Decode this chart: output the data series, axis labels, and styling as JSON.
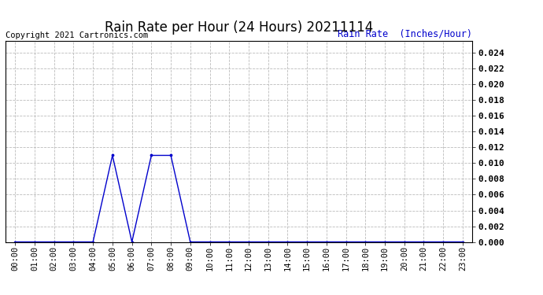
{
  "title": "Rain Rate per Hour (24 Hours) 20211114",
  "copyright_text": "Copyright 2021 Cartronics.com",
  "ylabel": "Rain Rate  (Inches/Hour)",
  "line_color": "#0000CC",
  "background_color": "#ffffff",
  "grid_color": "#bbbbbb",
  "hours": [
    0,
    1,
    2,
    3,
    4,
    5,
    6,
    7,
    8,
    9,
    10,
    11,
    12,
    13,
    14,
    15,
    16,
    17,
    18,
    19,
    20,
    21,
    22,
    23
  ],
  "values": [
    0,
    0,
    0,
    0,
    0,
    0.011,
    0,
    0.011,
    0.011,
    0,
    0,
    0,
    0,
    0,
    0,
    0,
    0,
    0,
    0,
    0,
    0,
    0,
    0,
    0
  ],
  "ylim": [
    0,
    0.0255
  ],
  "yticks": [
    0.0,
    0.002,
    0.004,
    0.006,
    0.008,
    0.01,
    0.012,
    0.014,
    0.016,
    0.018,
    0.02,
    0.022,
    0.024
  ],
  "marker_size": 3.5,
  "title_fontsize": 12,
  "label_fontsize": 8.5,
  "tick_fontsize": 7.5,
  "copyright_fontsize": 7.5,
  "ytick_fontsize": 8
}
